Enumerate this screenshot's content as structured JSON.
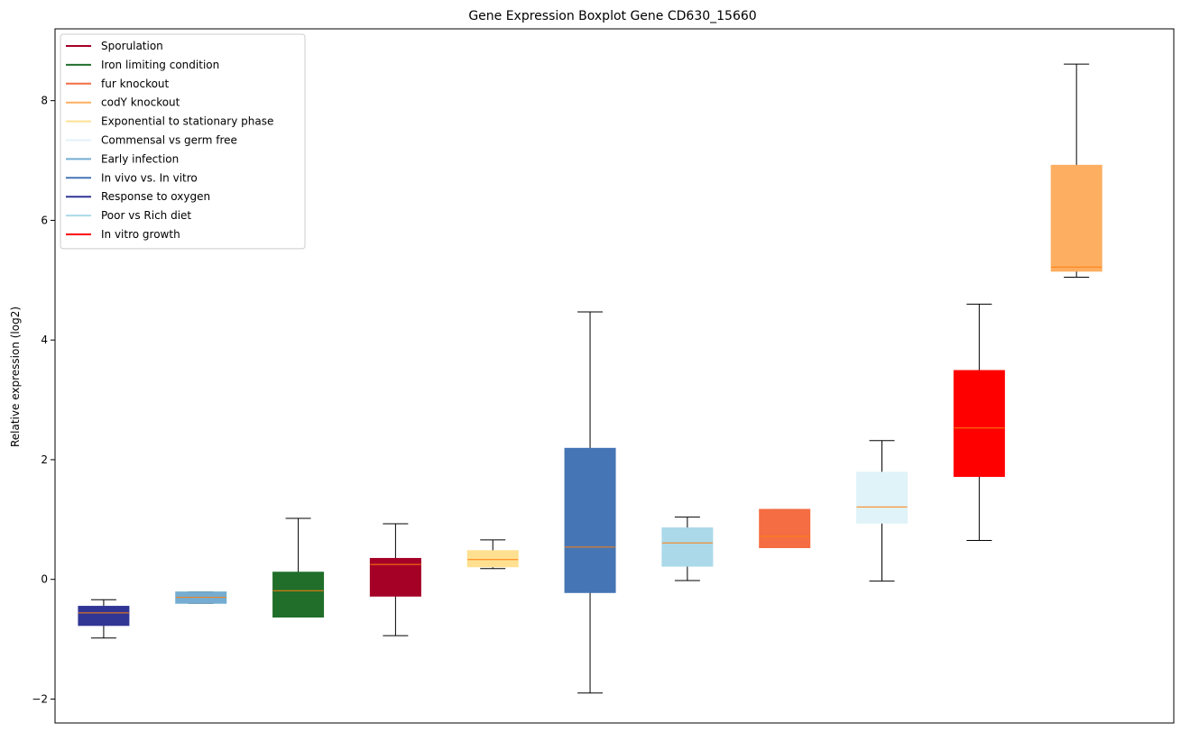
{
  "chart_data": {
    "type": "boxplot",
    "title": "Gene Expression Boxplot Gene CD630_15660",
    "xlabel": "",
    "ylabel": "Relative expression (log2)",
    "ylim": [
      -2.4,
      9.2
    ],
    "yticks": [
      -2,
      0,
      2,
      4,
      6,
      8
    ],
    "ytick_labels": [
      "−2",
      "0",
      "2",
      "4",
      "6",
      "8"
    ],
    "median_color": "#ff7f0e",
    "legend": {
      "position": "top-left",
      "entries": [
        {
          "label": "Sporulation",
          "color": "#a50026"
        },
        {
          "label": "Iron limiting condition",
          "color": "#216e2b"
        },
        {
          "label": "fur knockout",
          "color": "#f46d43"
        },
        {
          "label": "codY knockout",
          "color": "#fdae61"
        },
        {
          "label": "Exponential to stationary phase",
          "color": "#fee090"
        },
        {
          "label": "Commensal vs germ free",
          "color": "#e0f3f8"
        },
        {
          "label": "Early infection",
          "color": "#74add1"
        },
        {
          "label": "In vivo vs. In vitro",
          "color": "#4575b4"
        },
        {
          "label": "Response to oxygen",
          "color": "#313695"
        },
        {
          "label": "Poor vs Rich diet",
          "color": "#abd9e9"
        },
        {
          "label": "In vitro growth",
          "color": "#ff0000"
        }
      ]
    },
    "boxes": [
      {
        "name": "Response to oxygen",
        "color": "#313695",
        "whisker_low": -0.98,
        "q1": -0.77,
        "median": -0.56,
        "q3": -0.45,
        "whisker_high": -0.34
      },
      {
        "name": "Early infection",
        "color": "#74add1",
        "whisker_low": -0.4,
        "q1": -0.4,
        "median": -0.3,
        "q3": -0.21,
        "whisker_high": -0.21
      },
      {
        "name": "Iron limiting condition",
        "color": "#216e2b",
        "whisker_low": -0.63,
        "q1": -0.63,
        "median": -0.19,
        "q3": 0.12,
        "whisker_high": 1.02
      },
      {
        "name": "Sporulation",
        "color": "#a50026",
        "whisker_low": -0.94,
        "q1": -0.28,
        "median": 0.25,
        "q3": 0.35,
        "whisker_high": 0.93
      },
      {
        "name": "Exponential to stationary phase",
        "color": "#fee090",
        "whisker_low": 0.18,
        "q1": 0.21,
        "median": 0.33,
        "q3": 0.48,
        "whisker_high": 0.66
      },
      {
        "name": "In vivo vs. In vitro",
        "color": "#4575b4",
        "whisker_low": -1.9,
        "q1": -0.22,
        "median": 0.54,
        "q3": 2.19,
        "whisker_high": 4.47
      },
      {
        "name": "Poor vs Rich diet",
        "color": "#abd9e9",
        "whisker_low": -0.02,
        "q1": 0.22,
        "median": 0.61,
        "q3": 0.86,
        "whisker_high": 1.04
      },
      {
        "name": "fur knockout",
        "color": "#f46d43",
        "whisker_low": 0.53,
        "q1": 0.53,
        "median": 0.72,
        "q3": 1.17,
        "whisker_high": 1.17
      },
      {
        "name": "Commensal vs germ free",
        "color": "#e0f3f8",
        "whisker_low": -0.03,
        "q1": 0.94,
        "median": 1.21,
        "q3": 1.79,
        "whisker_high": 2.32
      },
      {
        "name": "In vitro growth",
        "color": "#ff0000",
        "whisker_low": 0.65,
        "q1": 1.72,
        "median": 2.53,
        "q3": 3.49,
        "whisker_high": 4.6
      },
      {
        "name": "codY knockout",
        "color": "#fdae61",
        "whisker_low": 5.05,
        "q1": 5.15,
        "median": 5.22,
        "q3": 6.92,
        "whisker_high": 8.61
      }
    ]
  }
}
